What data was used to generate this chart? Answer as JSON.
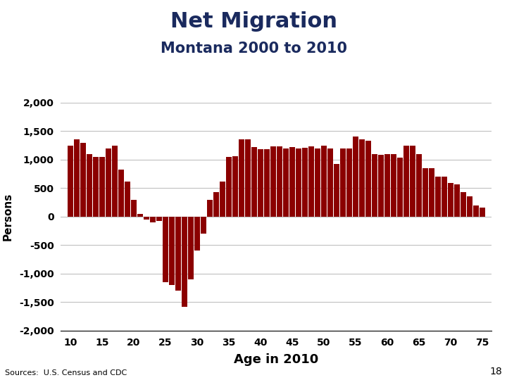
{
  "title_line1": "Net Migration",
  "title_line2": "Montana 2000 to 2010",
  "xlabel": "Age in 2010",
  "ylabel": "Persons",
  "source": "Sources:  U.S. Census and CDC",
  "page_num": "18",
  "ylim": [
    -2000,
    2000
  ],
  "ytick_step": 500,
  "bar_color": "#8B0000",
  "ages": [
    10,
    11,
    12,
    13,
    14,
    15,
    16,
    17,
    18,
    19,
    20,
    21,
    22,
    23,
    24,
    25,
    26,
    27,
    28,
    29,
    30,
    31,
    32,
    33,
    34,
    35,
    36,
    37,
    38,
    39,
    40,
    41,
    42,
    43,
    44,
    45,
    46,
    47,
    48,
    49,
    50,
    51,
    52,
    53,
    54,
    55,
    56,
    57,
    58,
    59,
    60,
    61,
    62,
    63,
    64,
    65,
    66,
    67,
    68,
    69,
    70,
    71,
    72,
    73,
    74,
    75
  ],
  "values": [
    1250,
    1350,
    1300,
    1100,
    1050,
    1050,
    1200,
    1250,
    830,
    620,
    300,
    50,
    -50,
    -100,
    -80,
    -1150,
    -1200,
    -1300,
    -1580,
    -1100,
    -600,
    -300,
    300,
    430,
    620,
    1050,
    1060,
    1350,
    1350,
    1220,
    1180,
    1180,
    1230,
    1230,
    1200,
    1220,
    1200,
    1210,
    1230,
    1200,
    1240,
    1200,
    920,
    1200,
    1200,
    1400,
    1350,
    1330,
    1100,
    1080,
    1100,
    1100,
    1030,
    1250,
    1250,
    1100,
    850,
    850,
    700,
    700,
    590,
    570,
    430,
    360,
    200,
    160
  ],
  "xtick_positions": [
    10,
    15,
    20,
    25,
    30,
    35,
    40,
    45,
    50,
    55,
    60,
    65,
    70,
    75
  ],
  "title_color": "#1a2a5e",
  "background_color": "#ffffff",
  "grid_color": "#c0c0c0"
}
